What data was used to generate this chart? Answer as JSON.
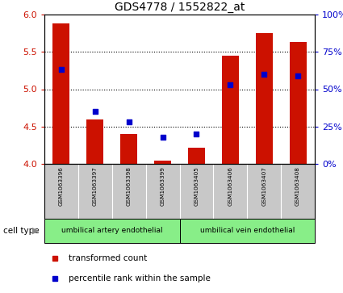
{
  "title": "GDS4778 / 1552822_at",
  "samples": [
    "GSM1063396",
    "GSM1063397",
    "GSM1063398",
    "GSM1063399",
    "GSM1063405",
    "GSM1063406",
    "GSM1063407",
    "GSM1063408"
  ],
  "transformed_count": [
    5.88,
    4.6,
    4.4,
    4.04,
    4.22,
    5.45,
    5.75,
    5.63
  ],
  "percentile_rank": [
    63,
    35,
    28,
    18,
    20,
    53,
    60,
    59
  ],
  "ylim_left": [
    4.0,
    6.0
  ],
  "ylim_right": [
    0,
    100
  ],
  "yticks_left": [
    4.0,
    4.5,
    5.0,
    5.5,
    6.0
  ],
  "yticks_right": [
    0,
    25,
    50,
    75,
    100
  ],
  "yticklabels_right": [
    "0%",
    "25%",
    "50%",
    "75%",
    "100%"
  ],
  "bar_color": "#cc1100",
  "dot_color": "#0000cc",
  "bar_width": 0.5,
  "group1_label": "umbilical artery endothelial",
  "group2_label": "umbilical vein endothelial",
  "cell_type_label": "cell type",
  "legend_red_label": "transformed count",
  "legend_blue_label": "percentile rank within the sample",
  "bg_color": "#ffffff",
  "tick_color_left": "#cc1100",
  "tick_color_right": "#0000cc",
  "panel_bg": "#c8c8c8",
  "group_bg": "#88ee88"
}
